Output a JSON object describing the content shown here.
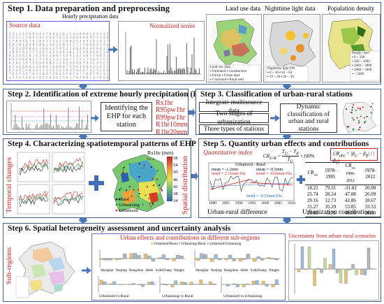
{
  "step1": {
    "title": "Step 1. Data preparation and preprocessing",
    "hourly_label": "Hourly precipitation data",
    "source_label": "Source data",
    "normalized_label": "Normalized series",
    "landuse_label": "Land use data",
    "nightlight_label": "Nighttime light data",
    "popdensity_label": "Population density data"
  },
  "step2": {
    "title": "Step 2. Identification of extreme hourly precipitation (EHP)",
    "box_text": "Identifying the EHP for each station",
    "indices": [
      "Rx1hr",
      "R95pw1hr",
      "R99pw1hr",
      "R1hr10mm",
      "R1hr20mm"
    ]
  },
  "step3": {
    "title": "Step 3. Classification of urban-rural stations",
    "boxes": [
      "Integrate multisource data",
      "Two stages of urbanization",
      "Three types of stations"
    ],
    "right_box": "Dynamic classification of urban and rural stations"
  },
  "step4": {
    "title": "Step 4. Characterizing spatiotemporal patterns of EHP",
    "temporal_label": "Temporal changes",
    "spatial_label": "Spatial distribution",
    "map_title": "Rx1hr (mm)",
    "colorbar": [
      "58",
      "54",
      "50",
      "46",
      "42",
      "38",
      "34"
    ],
    "legend": [
      "Rural",
      "Urbanizing",
      "Urbanized"
    ],
    "legend_colors": [
      "#222222",
      "#1a8a3a",
      "#d11f1f"
    ]
  },
  "step5": {
    "title": "Step 5. Quantity urban effects and contributions",
    "quant_label": "Quantitative index",
    "chart_label": "Urbanized - Rural",
    "mean1": "mean = -1.2mm",
    "trend1": "trend = 2.11mm/10a",
    "mean2": "mean = -0.5mm",
    "trend2": "trend = -0.66mm/10a",
    "trend3": "trend = -0.52mm/10a",
    "years": [
      "1980",
      "1985",
      "1990",
      "1995",
      "2000",
      "2005",
      "2010"
    ],
    "diff_label": "Urban-rural difference",
    "contrib_label": "Urbanization contributions",
    "table_head": [
      "CR",
      "1978-1995",
      "CR",
      "1996-2012",
      "1978-2012"
    ],
    "table_rows": [
      [
        "18.21",
        "79.31",
        "-31.82",
        "20.00"
      ],
      [
        "25.74",
        "28.24",
        "47.08",
        "26.09"
      ],
      [
        "20.16",
        "12.73",
        "42.86",
        "18.67"
      ],
      [
        "31.27",
        "35.29",
        "53.85",
        "33.33"
      ],
      [
        "28.05",
        "-0.75",
        "40.00",
        "20.00"
      ]
    ]
  },
  "step6": {
    "title": "Step 6. Spatial heterogeneity assessment and uncertainty analysis",
    "subregions_label": "Sub-regions",
    "effects_label": "Urban effects and contributions in different sub-regions",
    "uncertainty_label": "Uncertainty from urban-rural scenarios",
    "regions": [
      "Shanghai",
      "Nanjing",
      "Hangzhou",
      "Hefei",
      "SuXiChang",
      "Ningbo"
    ],
    "chart_legend": [
      "Urbanized-Rural",
      "Urbanizing-Rural",
      "Urbanized-Urbanizing"
    ],
    "captions": [
      "Urbanized vs Rural",
      "Urbanizing vs Rural",
      "Urbanized vs Urbanizing"
    ],
    "colors": {
      "urbanized_rural": "#e8c070",
      "urbanizing_rural": "#9bbce0",
      "urbanized_urbanizing": "#b4b4b4"
    }
  }
}
